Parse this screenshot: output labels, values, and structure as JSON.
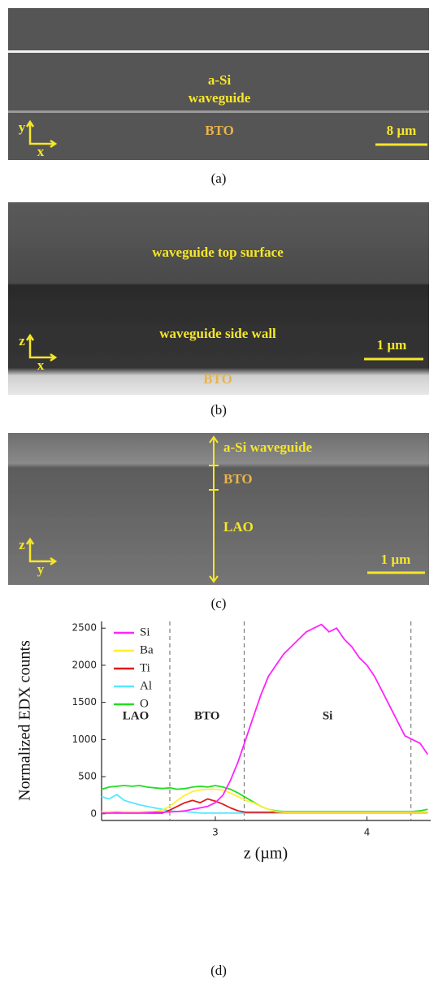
{
  "panels": [
    {
      "caption": "(a)",
      "labels": [
        "a-Si",
        "waveguide",
        "BTO",
        "8 µm",
        "y",
        "x"
      ]
    },
    {
      "caption": "(b)",
      "labels": [
        "waveguide top surface",
        "waveguide side wall",
        "BTO",
        "1 µm",
        "z",
        "x"
      ]
    },
    {
      "caption": "(c)",
      "labels": [
        "a-Si waveguide",
        "BTO",
        "LAO",
        "1 µm",
        "z",
        "y"
      ]
    }
  ],
  "chart_data": {
    "type": "line",
    "caption": "(d)",
    "x_label": "z (µm)",
    "y_label": "Normalized EDX counts",
    "x": [
      2.25,
      2.3,
      2.35,
      2.4,
      2.45,
      2.5,
      2.55,
      2.6,
      2.65,
      2.7,
      2.75,
      2.8,
      2.85,
      2.9,
      2.95,
      3.0,
      3.05,
      3.1,
      3.15,
      3.2,
      3.25,
      3.3,
      3.35,
      3.4,
      3.45,
      3.5,
      3.55,
      3.6,
      3.65,
      3.7,
      3.75,
      3.8,
      3.85,
      3.9,
      3.95,
      4.0,
      4.05,
      4.1,
      4.15,
      4.2,
      4.25,
      4.3,
      4.35,
      4.4
    ],
    "series": [
      {
        "name": "Si",
        "color": "#ff22ff",
        "values": [
          10,
          10,
          15,
          10,
          10,
          10,
          15,
          20,
          20,
          25,
          30,
          40,
          60,
          80,
          100,
          150,
          250,
          450,
          700,
          1000,
          1300,
          1600,
          1850,
          2000,
          2150,
          2250,
          2350,
          2450,
          2500,
          2550,
          2450,
          2500,
          2350,
          2250,
          2100,
          2000,
          1850,
          1650,
          1450,
          1250,
          1050,
          1000,
          950,
          800
        ]
      },
      {
        "name": "Ba",
        "color": "#ffee33",
        "values": [
          30,
          30,
          30,
          30,
          30,
          30,
          30,
          30,
          50,
          100,
          180,
          250,
          300,
          320,
          330,
          330,
          320,
          280,
          230,
          180,
          150,
          100,
          60,
          30,
          20,
          20,
          20,
          20,
          20,
          20,
          20,
          20,
          20,
          20,
          20,
          20,
          20,
          20,
          20,
          20,
          20,
          20,
          20,
          20
        ]
      },
      {
        "name": "Ti",
        "color": "#e21b1b",
        "values": [
          10,
          10,
          10,
          10,
          10,
          10,
          10,
          10,
          10,
          50,
          100,
          150,
          180,
          150,
          200,
          170,
          130,
          80,
          40,
          20,
          20,
          20,
          20,
          20,
          20,
          20,
          20,
          20,
          20,
          20,
          20,
          20,
          20,
          20,
          20,
          20,
          20,
          20,
          20,
          20,
          20,
          20,
          20,
          20
        ]
      },
      {
        "name": "Al",
        "color": "#55e8ff",
        "values": [
          230,
          200,
          260,
          180,
          150,
          120,
          100,
          80,
          60,
          40,
          30,
          30,
          20,
          10,
          10,
          10,
          10,
          10,
          10,
          10,
          10,
          10,
          10,
          10,
          10,
          10,
          10,
          10,
          10,
          10,
          10,
          10,
          10,
          10,
          10,
          10,
          10,
          10,
          10,
          10,
          10,
          10,
          10,
          10
        ]
      },
      {
        "name": "O",
        "color": "#22dd22",
        "values": [
          330,
          360,
          370,
          380,
          370,
          380,
          360,
          350,
          340,
          350,
          330,
          340,
          360,
          370,
          360,
          380,
          360,
          330,
          280,
          220,
          160,
          100,
          60,
          40,
          30,
          30,
          30,
          30,
          30,
          30,
          30,
          30,
          30,
          30,
          30,
          30,
          30,
          30,
          30,
          30,
          30,
          30,
          40,
          60
        ]
      }
    ],
    "xlim": [
      2.25,
      4.42
    ],
    "xticks": [
      3,
      4
    ],
    "ylim": [
      -90,
      2590
    ],
    "yticks": [
      0,
      500,
      1000,
      1500,
      2000,
      2500
    ],
    "boundaries": [
      2.7,
      3.19,
      4.29
    ],
    "regions": [
      "LAO",
      "BTO",
      "Si"
    ],
    "legend": "upper-left"
  }
}
